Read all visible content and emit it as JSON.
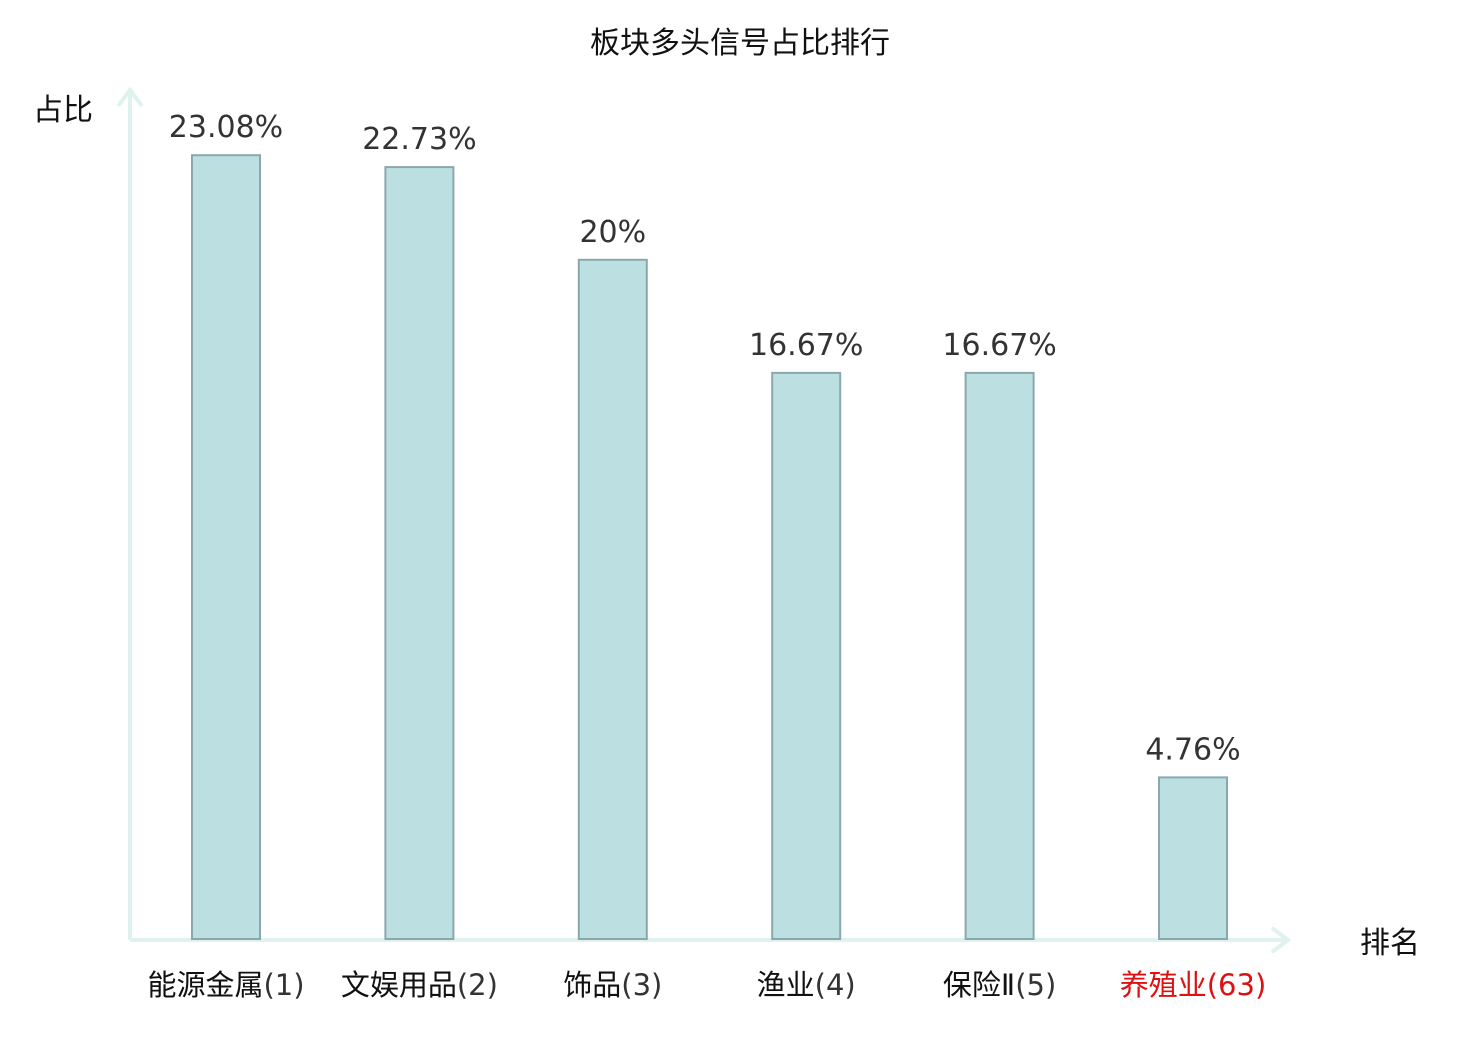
{
  "chart_data": {
    "type": "bar",
    "title": "板块多头信号占比排行",
    "ylabel": "占比",
    "xlabel": "排名",
    "categories": [
      "能源金属",
      "文娱用品",
      "饰品",
      "渔业",
      "保险Ⅱ",
      "养殖业"
    ],
    "ranks": [
      "(1)",
      "(2)",
      "(3)",
      "(4)",
      "(5)",
      "(63)"
    ],
    "values": [
      23.08,
      22.73,
      20,
      16.67,
      16.67,
      4.76
    ],
    "value_labels": [
      "23.08%",
      "22.73%",
      "20%",
      "16.67%",
      "16.67%",
      "4.76%"
    ],
    "highlight_index": 5,
    "ylim": [
      0,
      25
    ],
    "grid": false,
    "colors": {
      "bar_fill": "#bce0e2",
      "bar_stroke": "#8aa8aa",
      "axis": "#dff2ef",
      "text": "#333333",
      "label": "#111111",
      "highlight": "#dd1111"
    }
  }
}
